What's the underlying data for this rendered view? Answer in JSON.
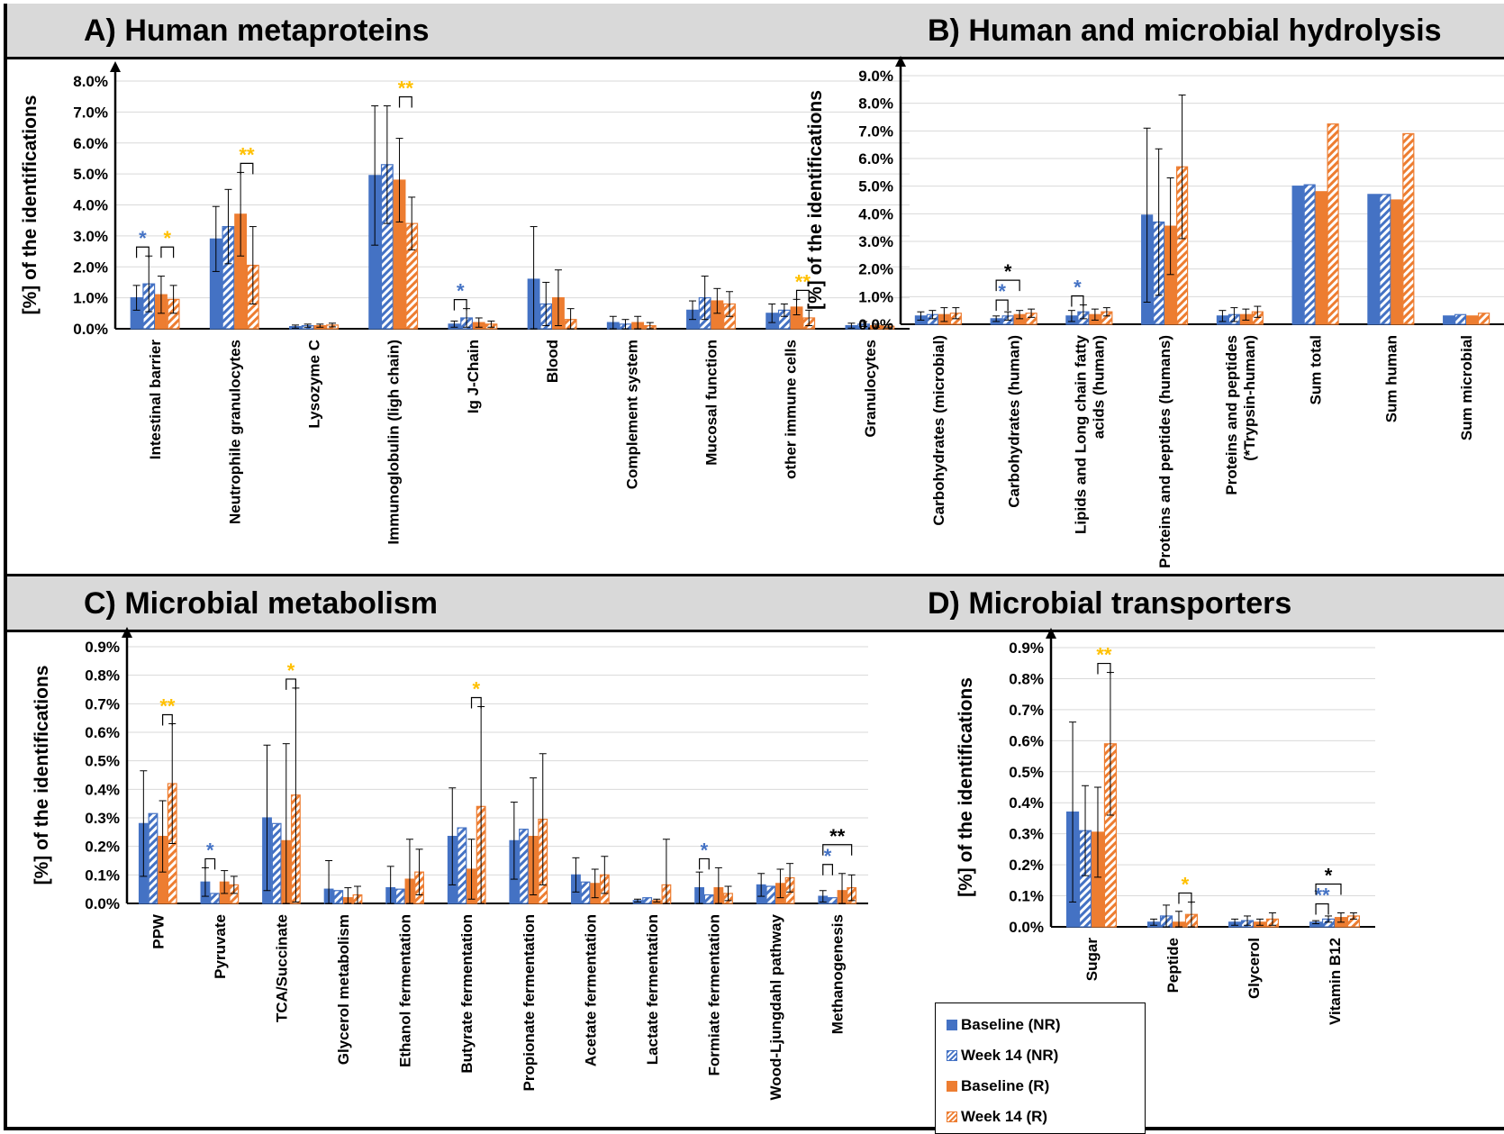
{
  "panels": {
    "A": {
      "title": "A) Human metaproteins"
    },
    "B": {
      "title": "B) Human and microbial hydrolysis"
    },
    "C": {
      "title": "C) Microbial metabolism"
    },
    "D": {
      "title": "D) Microbial transporters"
    }
  },
  "legend": [
    {
      "label": "Baseline (NR)",
      "pattern": "solid",
      "color": "#4472c4"
    },
    {
      "label": "Week 14 (NR)",
      "pattern": "hatched",
      "color": "#4472c4"
    },
    {
      "label": "Baseline (R)",
      "pattern": "solid",
      "color": "#ed7d31"
    },
    {
      "label": "Week 14 (R)",
      "pattern": "hatched",
      "color": "#ed7d31"
    }
  ],
  "colors": {
    "nr": "#4472c4",
    "r": "#ed7d31",
    "sig_blue": "#4472c4",
    "sig_yellow": "#ffc000",
    "sig_black": "#000000",
    "grid": "#d9d9d9"
  },
  "chart_data": [
    {
      "id": "A",
      "type": "bar",
      "ylabel": "[%]  of the identifications",
      "ylim": [
        0,
        8.0
      ],
      "yticks": [
        0,
        1,
        2,
        3,
        4,
        5,
        6,
        7,
        8
      ],
      "ytick_decimals": 1,
      "ytick_suffix": "%",
      "categories": [
        "Intestinal barrier",
        "Neutrophile granulocytes",
        "Lysozyme C",
        "Immunoglobulin (ligh chain)",
        "Ig J-Chain",
        "Blood",
        "Complement system",
        "Mucosal function",
        "other immune cells",
        "Granulocytes"
      ],
      "series": [
        {
          "name": "Baseline (NR)",
          "values": [
            1.0,
            2.9,
            0.07,
            4.95,
            0.15,
            1.6,
            0.2,
            0.6,
            0.5,
            0.1
          ],
          "errors": [
            0.4,
            1.05,
            0.05,
            2.25,
            0.1,
            1.7,
            0.2,
            0.3,
            0.3,
            0.08
          ]
        },
        {
          "name": "Week 14 (NR)",
          "values": [
            1.45,
            3.3,
            0.1,
            5.3,
            0.35,
            0.8,
            0.15,
            1.0,
            0.6,
            0.15
          ],
          "errors": [
            0.9,
            1.2,
            0.05,
            1.9,
            0.3,
            0.7,
            0.15,
            0.7,
            0.2,
            0.08
          ]
        },
        {
          "name": "Baseline (R)",
          "values": [
            1.1,
            3.7,
            0.1,
            4.8,
            0.2,
            1.0,
            0.2,
            0.9,
            0.7,
            0.1
          ],
          "errors": [
            0.6,
            1.35,
            0.05,
            1.35,
            0.15,
            0.9,
            0.2,
            0.4,
            0.25,
            0.05
          ]
        },
        {
          "name": "Week 14 (R)",
          "values": [
            0.95,
            2.05,
            0.12,
            3.4,
            0.15,
            0.3,
            0.1,
            0.8,
            0.35,
            0.08
          ],
          "errors": [
            0.45,
            1.25,
            0.06,
            0.85,
            0.1,
            0.35,
            0.1,
            0.4,
            0.25,
            0.05
          ]
        }
      ],
      "significance": [
        {
          "category": 0,
          "from": 0,
          "to": 1,
          "label": "*",
          "color": "#4472c4"
        },
        {
          "category": 0,
          "from": 2,
          "to": 3,
          "label": "*",
          "color": "#ffc000"
        },
        {
          "category": 1,
          "from": 2,
          "to": 3,
          "label": "**",
          "color": "#ffc000"
        },
        {
          "category": 3,
          "from": 2,
          "to": 3,
          "label": "**",
          "color": "#ffc000"
        },
        {
          "category": 4,
          "from": 0,
          "to": 1,
          "label": "*",
          "color": "#4472c4"
        },
        {
          "category": 8,
          "from": 2,
          "to": 3,
          "label": "**",
          "color": "#ffc000"
        }
      ]
    },
    {
      "id": "B",
      "type": "bar",
      "ylabel": "[%]  of the identifications",
      "ylim": [
        0,
        9.0
      ],
      "yticks": [
        0,
        1,
        2,
        3,
        4,
        5,
        6,
        7,
        8,
        9
      ],
      "ytick_decimals": 1,
      "ytick_suffix": "%",
      "categories": [
        "Carbohydrates (microbial)",
        "Carbohydrates (human)",
        "Lipids and Long chain fatty acids (human)",
        "Proteins and peptides (humans)",
        "Proteins and peptides (*Trypsin-human)",
        "Sum total",
        "Sum human",
        "Sum microbial"
      ],
      "series": [
        {
          "name": "Baseline (NR)",
          "values": [
            0.3,
            0.2,
            0.3,
            3.95,
            0.3,
            5.0,
            4.7,
            0.3
          ],
          "errors": [
            0.15,
            0.1,
            0.2,
            3.15,
            0.2,
            null,
            null,
            null
          ]
        },
        {
          "name": "Week 14 (NR)",
          "values": [
            0.35,
            0.3,
            0.45,
            3.7,
            0.35,
            5.05,
            4.7,
            0.35
          ],
          "errors": [
            0.15,
            0.15,
            0.25,
            2.65,
            0.25,
            null,
            null,
            null
          ]
        },
        {
          "name": "Baseline (R)",
          "values": [
            0.35,
            0.35,
            0.35,
            3.55,
            0.35,
            4.8,
            4.5,
            0.3
          ],
          "errors": [
            0.25,
            0.15,
            0.2,
            1.75,
            0.2,
            null,
            null,
            null
          ]
        },
        {
          "name": "Week 14 (R)",
          "values": [
            0.4,
            0.4,
            0.45,
            5.7,
            0.45,
            7.25,
            6.9,
            0.4
          ],
          "errors": [
            0.2,
            0.15,
            0.15,
            2.6,
            0.2,
            null,
            null,
            null
          ]
        }
      ],
      "significance": [
        {
          "category": 1,
          "from": 0,
          "to": 1,
          "label": "*",
          "color": "#4472c4"
        },
        {
          "category": 1,
          "from": 0,
          "to": 2,
          "label": "*",
          "color": "#000000",
          "level": 1
        },
        {
          "category": 2,
          "from": 0,
          "to": 1,
          "label": "*",
          "color": "#4472c4"
        }
      ]
    },
    {
      "id": "C",
      "type": "bar",
      "ylabel": "[%]  of the identifications",
      "ylim": [
        0,
        0.9
      ],
      "yticks": [
        0,
        0.1,
        0.2,
        0.3,
        0.4,
        0.5,
        0.6,
        0.7,
        0.8,
        0.9
      ],
      "ytick_decimals": 1,
      "ytick_suffix": "%",
      "categories": [
        "PPW",
        "Pyruvate",
        "TCA/Succinate",
        "Glycerol metabolism",
        "Ethanol fermentation",
        "Butyrate fermentation",
        "Propionate fermentation",
        "Acetate fermentation",
        "Lactate fermentation",
        "Formiate fermentation",
        "Wood-Ljungdahl pathway",
        "Methanogenesis"
      ],
      "series": [
        {
          "name": "Baseline (NR)",
          "values": [
            0.28,
            0.075,
            0.3,
            0.05,
            0.055,
            0.235,
            0.22,
            0.1,
            0.01,
            0.055,
            0.065,
            0.025
          ],
          "errors": [
            0.185,
            0.05,
            0.255,
            0.1,
            0.075,
            0.17,
            0.135,
            0.06,
            0.005,
            0.055,
            0.04,
            0.02
          ]
        },
        {
          "name": "Week 14 (NR)",
          "values": [
            0.315,
            0.035,
            0.28,
            0.045,
            0.05,
            0.265,
            0.26,
            0.075,
            0.02,
            0.03,
            0.06,
            0.02
          ]
        },
        {
          "name": "Baseline (R)",
          "values": [
            0.235,
            0.075,
            0.22,
            0.02,
            0.085,
            0.12,
            0.235,
            0.07,
            0.01,
            0.055,
            0.07,
            0.045
          ],
          "errors": [
            0.125,
            0.04,
            0.34,
            0.035,
            0.14,
            0.105,
            0.205,
            0.05,
            0.005,
            0.07,
            0.05,
            0.06
          ]
        },
        {
          "name": "Week 14 (R)",
          "values": [
            0.42,
            0.065,
            0.38,
            0.03,
            0.11,
            0.34,
            0.295,
            0.1,
            0.065,
            0.035,
            0.09,
            0.055
          ],
          "errors": [
            0.21,
            0.03,
            0.375,
            0.03,
            0.08,
            0.35,
            0.23,
            0.065,
            0.16,
            0.025,
            0.05,
            0.045
          ]
        }
      ],
      "significance": [
        {
          "category": 0,
          "from": 2,
          "to": 3,
          "label": "**",
          "color": "#ffc000"
        },
        {
          "category": 1,
          "from": 0,
          "to": 1,
          "label": "*",
          "color": "#4472c4"
        },
        {
          "category": 2,
          "from": 2,
          "to": 3,
          "label": "*",
          "color": "#ffc000"
        },
        {
          "category": 5,
          "from": 2,
          "to": 3,
          "label": "*",
          "color": "#ffc000"
        },
        {
          "category": 9,
          "from": 0,
          "to": 1,
          "label": "*",
          "color": "#4472c4"
        },
        {
          "category": 11,
          "from": 0,
          "to": 1,
          "label": "*",
          "color": "#4472c4"
        },
        {
          "category": 11,
          "from": 0,
          "to": 3,
          "label": "**",
          "color": "#000000",
          "level": 1
        }
      ]
    },
    {
      "id": "D",
      "type": "bar",
      "ylabel": "[%]  of the identifications",
      "ylim": [
        0,
        0.9
      ],
      "yticks": [
        0,
        0.1,
        0.2,
        0.3,
        0.4,
        0.5,
        0.6,
        0.7,
        0.8,
        0.9
      ],
      "ytick_decimals": 1,
      "ytick_suffix": "%",
      "categories": [
        "Sugar",
        "Peptide",
        "Glycerol",
        "Vitamin B12"
      ],
      "series": [
        {
          "name": "Baseline (NR)",
          "values": [
            0.37,
            0.015,
            0.015,
            0.015
          ],
          "errors": [
            0.29,
            0.01,
            0.01,
            0.005
          ]
        },
        {
          "name": "Week 14 (NR)",
          "values": [
            0.31,
            0.035,
            0.02,
            0.025
          ],
          "errors": [
            0.145,
            0.035,
            0.015,
            0.01
          ]
        },
        {
          "name": "Baseline (R)",
          "values": [
            0.305,
            0.015,
            0.015,
            0.03
          ],
          "errors": [
            0.145,
            0.035,
            0.01,
            0.015
          ]
        },
        {
          "name": "Week 14 (R)",
          "values": [
            0.59,
            0.04,
            0.025,
            0.035
          ],
          "errors": [
            0.23,
            0.04,
            0.02,
            0.01
          ]
        }
      ],
      "significance": [
        {
          "category": 0,
          "from": 2,
          "to": 3,
          "label": "**",
          "color": "#ffc000"
        },
        {
          "category": 1,
          "from": 2,
          "to": 3,
          "label": "*",
          "color": "#ffc000"
        },
        {
          "category": 3,
          "from": 0,
          "to": 1,
          "label": "**",
          "color": "#4472c4"
        },
        {
          "category": 3,
          "from": 0,
          "to": 2,
          "label": "*",
          "color": "#000000",
          "level": 1
        }
      ]
    }
  ]
}
